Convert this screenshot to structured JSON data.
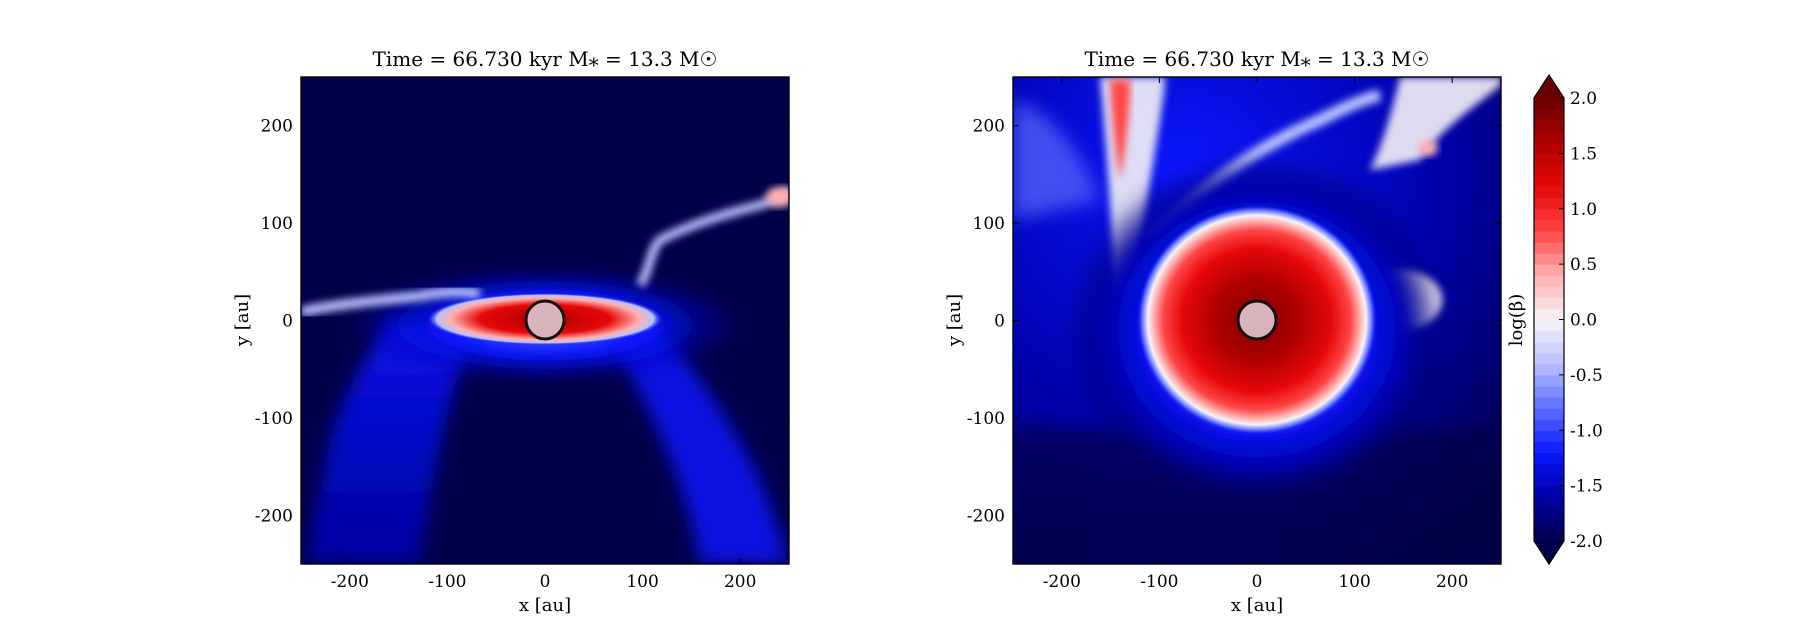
{
  "colorbar": {
    "label": "log(β)",
    "ticks": [
      "2.0",
      "1.5",
      "1.0",
      "0.5",
      "0.0",
      "-0.5",
      "-1.0",
      "-1.5",
      "-2.0"
    ],
    "range": [
      -2.0,
      2.0
    ],
    "extend": "both",
    "colors": [
      "#00004a",
      "#0000a8",
      "#0a17ff",
      "#5c6cff",
      "#b9c1ff",
      "#f6f3f8",
      "#ffb0b0",
      "#ff4545",
      "#e60808",
      "#b00000",
      "#6a0000"
    ]
  },
  "chart_data": [
    {
      "type": "heatmap",
      "title": "Time = 66.730 kyr    M⁎ = 13.3 M☉",
      "xlabel": "x [au]",
      "ylabel": "y [au]",
      "xlim": [
        -250,
        250
      ],
      "ylim": [
        -250,
        250
      ],
      "xticks": [
        "-200",
        "-100",
        "0",
        "100",
        "200"
      ],
      "yticks": [
        "200",
        "100",
        "0",
        "-100",
        "-200"
      ],
      "colorscale_quantity": "log(β)",
      "features": [
        {
          "region": "equatorial disk around sink",
          "x": [
            -90,
            110
          ],
          "y": [
            -10,
            10
          ],
          "log_beta": 1.8
        },
        {
          "region": "wide-angle outflow cavities (below midplane)",
          "x": [
            -200,
            250
          ],
          "y": [
            -250,
            -20
          ],
          "log_beta": -1.4
        },
        {
          "region": "filament to upper right",
          "x": [
            100,
            250
          ],
          "y": [
            70,
            130
          ],
          "log_beta": 0.3
        },
        {
          "region": "background",
          "log_beta": -2.0
        }
      ],
      "sink": {
        "x": 0,
        "y": 0,
        "radius_au": 20
      }
    },
    {
      "type": "heatmap",
      "title": "Time = 66.730 kyr    M⁎ = 13.3 M☉",
      "xlabel": "x [au]",
      "ylabel": "y [au]",
      "xlim": [
        -250,
        250
      ],
      "ylim": [
        -250,
        250
      ],
      "xticks": [
        "-200",
        "-100",
        "0",
        "100",
        "200"
      ],
      "yticks": [
        "200",
        "100",
        "0",
        "-100",
        "-200"
      ],
      "colorscale_quantity": "log(β)",
      "features": [
        {
          "region": "central high-beta region",
          "center": [
            0,
            0
          ],
          "radius_au": 115,
          "log_beta": 1.8
        },
        {
          "region": "stream to upper left",
          "x": [
            -160,
            -120
          ],
          "y": [
            50,
            250
          ],
          "log_beta": 1.2
        },
        {
          "region": "streams to upper right",
          "x": [
            120,
            250
          ],
          "y": [
            160,
            250
          ],
          "log_beta": 0.5
        },
        {
          "region": "blob to right",
          "center": [
            150,
            15
          ],
          "log_beta": 0.2
        },
        {
          "region": "background",
          "log_beta": -2.0
        }
      ],
      "sink": {
        "x": 0,
        "y": 0,
        "radius_au": 20
      }
    }
  ]
}
